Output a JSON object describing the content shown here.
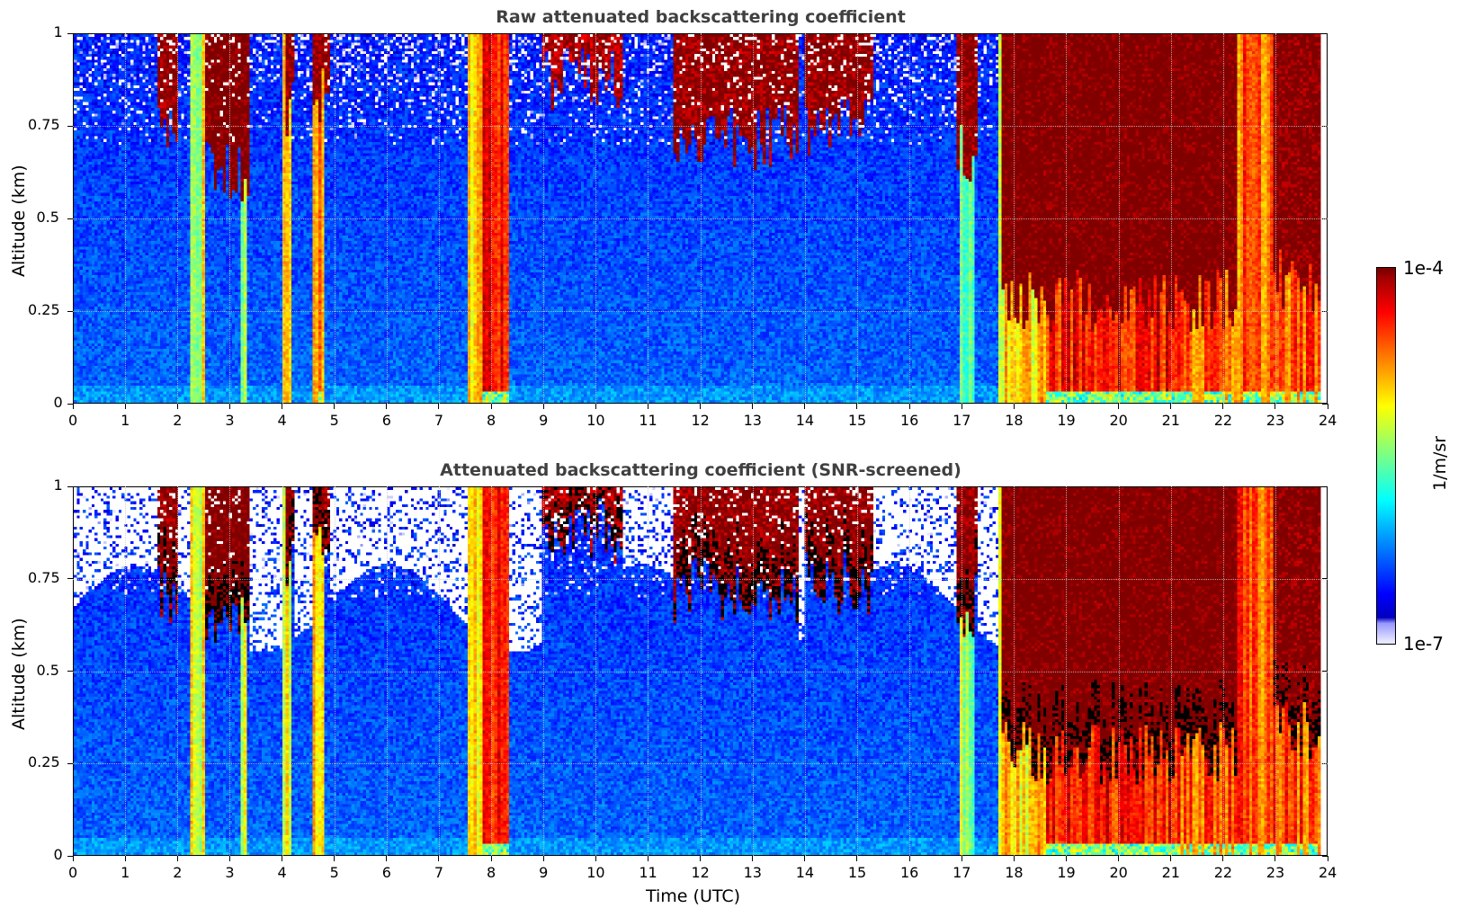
{
  "chart_data": [
    {
      "type": "heatmap",
      "id": "raw",
      "title": "Raw attenuated backscattering coefficient",
      "xlabel": "",
      "ylabel": "Altitude (km)",
      "xlim": [
        0,
        24
      ],
      "ylim": [
        0,
        1
      ],
      "xticks": [
        0,
        1,
        2,
        3,
        4,
        5,
        6,
        7,
        8,
        9,
        10,
        11,
        12,
        13,
        14,
        15,
        16,
        17,
        18,
        19,
        20,
        21,
        22,
        23,
        24
      ],
      "xtick_labels": [
        "0",
        "1",
        "2",
        "3",
        "4",
        "5",
        "6",
        "7",
        "8",
        "9",
        "10",
        "11",
        "12",
        "13",
        "14",
        "15",
        "16",
        "17",
        "18",
        "19",
        "20",
        "21",
        "22",
        "23",
        "24"
      ],
      "yticks": [
        0,
        0.25,
        0.5,
        0.75,
        1
      ],
      "ytick_labels": [
        "0",
        "0.25",
        "0.5",
        "0.75",
        "1"
      ],
      "grid": true,
      "snr_screened": false
    },
    {
      "type": "heatmap",
      "id": "screened",
      "title": "Attenuated backscattering coefficient (SNR-screened)",
      "xlabel": "Time (UTC)",
      "ylabel": "Altitude (km)",
      "xlim": [
        0,
        24
      ],
      "ylim": [
        0,
        1
      ],
      "xticks": [
        0,
        1,
        2,
        3,
        4,
        5,
        6,
        7,
        8,
        9,
        10,
        11,
        12,
        13,
        14,
        15,
        16,
        17,
        18,
        19,
        20,
        21,
        22,
        23,
        24
      ],
      "xtick_labels": [
        "0",
        "1",
        "2",
        "3",
        "4",
        "5",
        "6",
        "7",
        "8",
        "9",
        "10",
        "11",
        "12",
        "13",
        "14",
        "15",
        "16",
        "17",
        "18",
        "19",
        "20",
        "21",
        "22",
        "23",
        "24"
      ],
      "yticks": [
        0,
        0.25,
        0.5,
        0.75,
        1
      ],
      "ytick_labels": [
        "0",
        "0.25",
        "0.5",
        "0.75",
        "1"
      ],
      "grid": true,
      "snr_screened": true
    }
  ],
  "colorbar": {
    "colormap": "jet",
    "scale": "log",
    "min_label": "1e-7",
    "max_label": "1e-4",
    "min_value": 1e-07,
    "max_value": 0.0001,
    "units": "1/m/sr",
    "levels": 64
  },
  "features": {
    "background_log10": -6.3,
    "cloud_events": [
      {
        "t0": 1.6,
        "t1": 2.0,
        "base_km": 0.72,
        "log10": -4.1
      },
      {
        "t0": 2.5,
        "t1": 3.4,
        "base_km": 0.62,
        "log10": -4.0
      },
      {
        "t0": 4.05,
        "t1": 4.2,
        "base_km": 0.78,
        "log10": -4.1
      },
      {
        "t0": 4.6,
        "t1": 4.9,
        "base_km": 0.82,
        "log10": -4.1
      },
      {
        "t0": 9.0,
        "t1": 10.5,
        "base_km": 0.88,
        "log10": -4.2
      },
      {
        "t0": 11.5,
        "t1": 13.9,
        "base_km": 0.72,
        "log10": -4.1
      },
      {
        "t0": 14.0,
        "t1": 15.3,
        "base_km": 0.74,
        "log10": -4.1
      },
      {
        "t0": 16.9,
        "t1": 17.3,
        "base_km": 0.68,
        "log10": -4.1
      },
      {
        "t0": 17.8,
        "t1": 22.3,
        "base_km": 0.28,
        "log10": -4.0
      },
      {
        "t0": 23.0,
        "t1": 23.9,
        "base_km": 0.33,
        "log10": -4.05
      }
    ],
    "enhanced_columns": [
      {
        "t0": 2.2,
        "t1": 2.5,
        "log10": -5.2
      },
      {
        "t0": 3.2,
        "t1": 3.3,
        "log10": -5.3
      },
      {
        "t0": 4.0,
        "t1": 4.15,
        "log10": -5.1
      },
      {
        "t0": 4.6,
        "t1": 4.8,
        "log10": -4.9
      },
      {
        "t0": 7.55,
        "t1": 7.85,
        "log10": -4.9
      },
      {
        "t0": 7.85,
        "t1": 8.35,
        "log10": -4.4
      },
      {
        "t0": 17.0,
        "t1": 17.25,
        "log10": -5.4
      },
      {
        "t0": 17.7,
        "t1": 18.65,
        "log10": -5.0
      },
      {
        "t0": 18.65,
        "t1": 21.2,
        "log10": -4.4
      },
      {
        "t0": 21.2,
        "t1": 23.9,
        "log10": -4.6
      }
    ],
    "noisy_top_km": 0.7,
    "data_end_hr": 23.9
  }
}
